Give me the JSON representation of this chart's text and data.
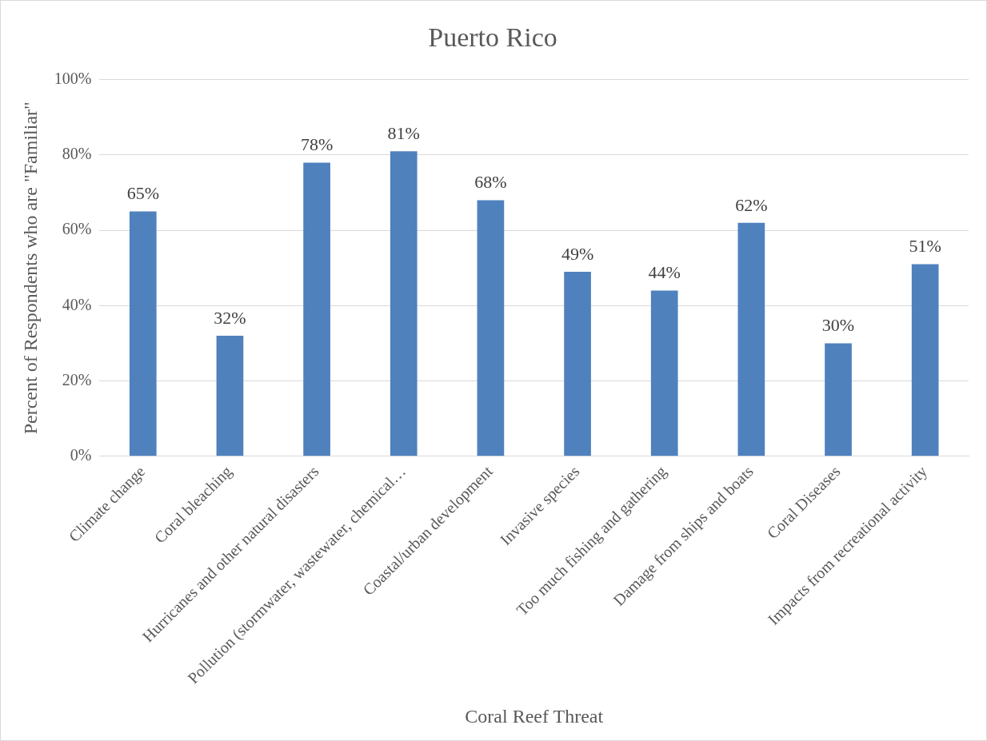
{
  "chart_data": {
    "type": "bar",
    "title": "Puerto Rico",
    "xlabel": "Coral Reef Threat",
    "ylabel": "Percent of Respondents who are \"Familiar\"",
    "categories": [
      "Climate change",
      "Coral bleaching",
      "Hurricanes and other natural disasters",
      "Pollution (stormwater, wastewater, chemical…",
      "Coastal/urban development",
      "Invasive species",
      "Too much fishing and gathering",
      "Damage from ships and boats",
      "Coral Diseases",
      "Impacts from recreational activity"
    ],
    "values": [
      65,
      32,
      78,
      81,
      68,
      49,
      44,
      62,
      30,
      51
    ],
    "value_labels": [
      "65%",
      "32%",
      "78%",
      "81%",
      "68%",
      "49%",
      "44%",
      "62%",
      "30%",
      "51%"
    ],
    "color": "#4f81bd",
    "ylim": [
      0,
      100
    ],
    "yticks": [
      {
        "value": 0,
        "label": "0%"
      },
      {
        "value": 20,
        "label": "20%"
      },
      {
        "value": 40,
        "label": "40%"
      },
      {
        "value": 60,
        "label": "60%"
      },
      {
        "value": 80,
        "label": "80%"
      },
      {
        "value": 100,
        "label": "100%"
      }
    ],
    "grid": "y",
    "legend": false
  }
}
